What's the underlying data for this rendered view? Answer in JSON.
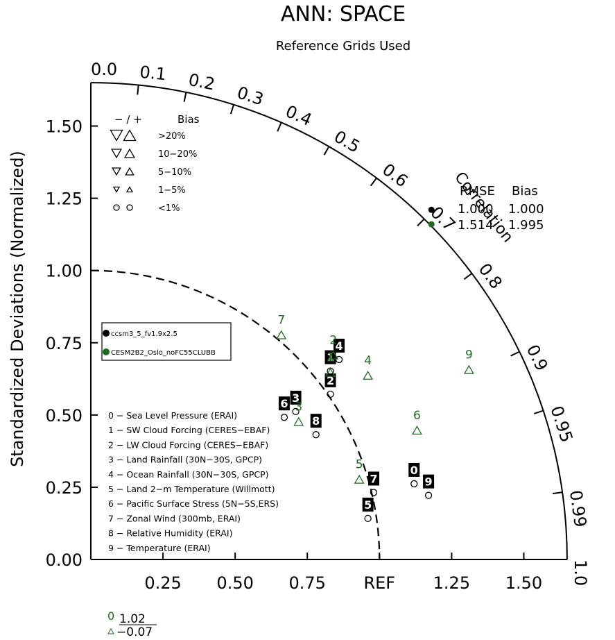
{
  "title": "ANN: SPACE",
  "subtitle": "Reference Grids Used",
  "colors": {
    "model_1": "#000000",
    "model_2": "#1f6b1f",
    "axis": "#000000"
  },
  "chart_data": {
    "type": "scatter",
    "diagram": "taylor",
    "ylabel": "Standardized Deviations (Normalized)",
    "xlabel": "",
    "correlation_label": "Correlation",
    "std_ticks": [
      {
        "v": 0.25,
        "label": "0.25"
      },
      {
        "v": 0.5,
        "label": "0.50"
      },
      {
        "v": 0.75,
        "label": "0.75"
      },
      {
        "v": 1.0,
        "label": "REF"
      },
      {
        "v": 1.25,
        "label": "1.25"
      },
      {
        "v": 1.5,
        "label": "1.50"
      }
    ],
    "y_ticks": [
      {
        "v": 0.0,
        "label": "0.00"
      },
      {
        "v": 0.25,
        "label": "0.25"
      },
      {
        "v": 0.5,
        "label": "0.50"
      },
      {
        "v": 0.75,
        "label": "0.75"
      },
      {
        "v": 1.0,
        "label": "1.00"
      },
      {
        "v": 1.25,
        "label": "1.25"
      },
      {
        "v": 1.5,
        "label": "1.50"
      }
    ],
    "corr_ticks": [
      {
        "v": 0.0,
        "label": "0.0"
      },
      {
        "v": 0.1,
        "label": "0.1"
      },
      {
        "v": 0.2,
        "label": "0.2"
      },
      {
        "v": 0.3,
        "label": "0.3"
      },
      {
        "v": 0.4,
        "label": "0.4"
      },
      {
        "v": 0.5,
        "label": "0.5"
      },
      {
        "v": 0.6,
        "label": "0.6"
      },
      {
        "v": 0.7,
        "label": "0.7"
      },
      {
        "v": 0.8,
        "label": "0.8"
      },
      {
        "v": 0.9,
        "label": "0.9"
      },
      {
        "v": 0.95,
        "label": "0.95"
      },
      {
        "v": 0.99,
        "label": "0.99"
      },
      {
        "v": 1.0,
        "label": "1.0"
      }
    ],
    "std_max": 1.65,
    "bias_legend": {
      "header_sign": "−  /  +",
      "header_bias": "Bias",
      "rows": [
        ">20%",
        "10−20%",
        "5−10%",
        "1−5%",
        "<1%"
      ]
    },
    "series": [
      {
        "name": "ccsm3_5_fv1.9x2.5",
        "color": "#000000",
        "points": [
          {
            "id": "0",
            "x": 1.12,
            "y": 0.31
          },
          {
            "id": "1",
            "x": 0.83,
            "y": 0.7
          },
          {
            "id": "2",
            "x": 0.83,
            "y": 0.62
          },
          {
            "id": "3",
            "x": 0.71,
            "y": 0.56
          },
          {
            "id": "4",
            "x": 0.86,
            "y": 0.74
          },
          {
            "id": "5",
            "x": 0.96,
            "y": 0.19
          },
          {
            "id": "6",
            "x": 0.67,
            "y": 0.54
          },
          {
            "id": "7",
            "x": 0.98,
            "y": 0.28
          },
          {
            "id": "8",
            "x": 0.78,
            "y": 0.48
          },
          {
            "id": "9",
            "x": 1.17,
            "y": 0.27
          }
        ]
      },
      {
        "name": "CESM2B2_Oslo_noFC55CLUBB",
        "color": "#1f6b1f",
        "points": [
          {
            "id": "1",
            "x": 0.83,
            "y": 0.7
          },
          {
            "id": "2",
            "x": 0.84,
            "y": 0.76
          },
          {
            "id": "3",
            "x": 0.72,
            "y": 0.53
          },
          {
            "id": "4",
            "x": 0.96,
            "y": 0.69
          },
          {
            "id": "5",
            "x": 0.93,
            "y": 0.33
          },
          {
            "id": "6",
            "x": 1.13,
            "y": 0.5
          },
          {
            "id": "7",
            "x": 0.66,
            "y": 0.83
          },
          {
            "id": "9",
            "x": 1.31,
            "y": 0.71
          }
        ]
      }
    ],
    "stats_box": {
      "header_rmse": "RMSE",
      "header_bias": "Bias",
      "rows": [
        {
          "color": "#000000",
          "rmse": "1.000",
          "bias": "1.000",
          "x": 1.18,
          "y": 1.21
        },
        {
          "color": "#1f6b1f",
          "rmse": "1.514",
          "bias": "1.995",
          "x": 1.18,
          "y": 1.16
        }
      ]
    },
    "variables": [
      "0 − Sea Level Pressure (ERAI)",
      "1 − SW Cloud Forcing (CERES−EBAF)",
      "2 − LW Cloud Forcing (CERES−EBAF)",
      "3 − Land Rainfall (30N−30S, GPCP)",
      "4 − Ocean Rainfall (30N−30S, GPCP)",
      "5 − Land 2−m Temperature (Willmott)",
      "6 − Pacific Surface Stress (5N−5S,ERS)",
      "7 − Zonal Wind (300mb, ERAI)",
      "8 − Relative Humidity (ERAI)",
      "9 − Temperature (ERAI)"
    ],
    "outlier": {
      "label": "0",
      "value": "1.02",
      "bias": "−0.07"
    }
  }
}
